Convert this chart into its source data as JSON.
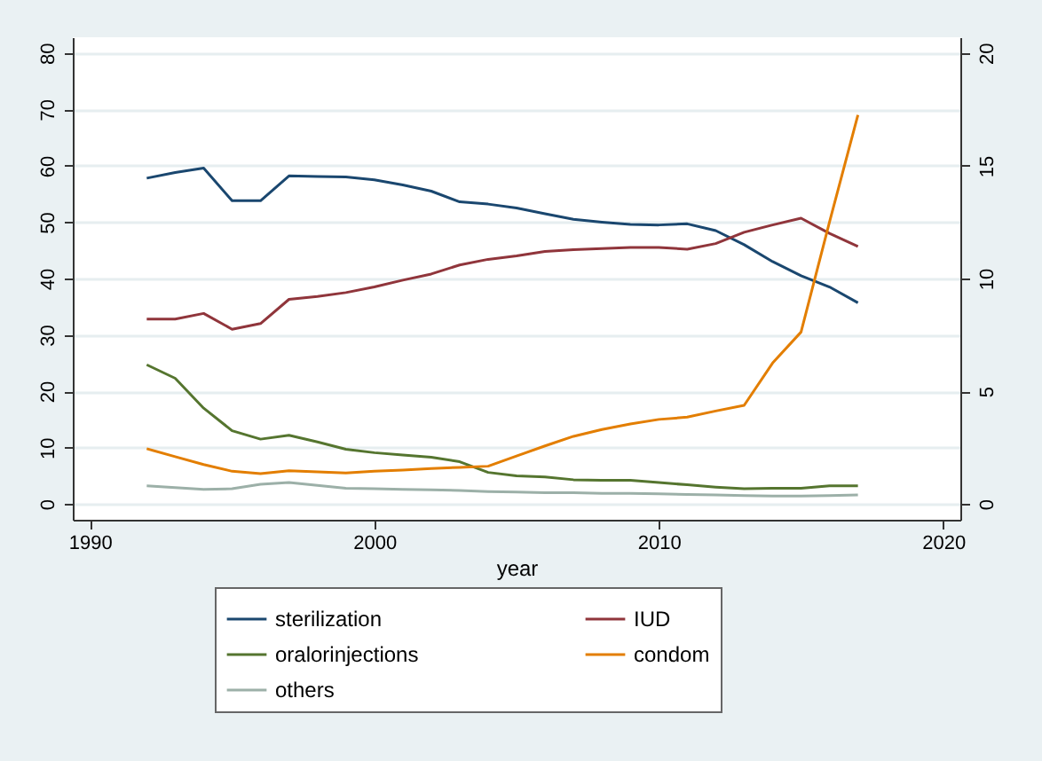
{
  "chart_data": {
    "type": "line",
    "xlabel": "year",
    "x": [
      1992,
      1993,
      1994,
      1995,
      1996,
      1997,
      1998,
      1999,
      2000,
      2001,
      2002,
      2003,
      2004,
      2005,
      2006,
      2007,
      2008,
      2009,
      2010,
      2011,
      2012,
      2013,
      2014,
      2015,
      2016,
      2017
    ],
    "series": [
      {
        "name": "sterilization",
        "color": "#1a476f",
        "values": [
          57.8,
          58.8,
          59.6,
          53.8,
          53.8,
          58.2,
          58.1,
          58,
          57.5,
          56.6,
          55.5,
          53.6,
          53.2,
          52.5,
          51.5,
          50.5,
          50,
          49.6,
          49.5,
          49.7,
          48.5,
          46,
          43,
          40.5,
          38.5,
          35.7
        ]
      },
      {
        "name": "IUD",
        "color": "#90353b",
        "values": [
          32.8,
          32.8,
          33.8,
          31,
          32,
          36.3,
          36.8,
          37.5,
          38.5,
          39.7,
          40.8,
          42.4,
          43.4,
          44,
          44.8,
          45.1,
          45.3,
          45.5,
          45.5,
          45.2,
          46.2,
          48.2,
          49.5,
          50.7,
          48,
          45.7
        ]
      },
      {
        "name": "oralorinjections",
        "color": "#55752f",
        "values": [
          24.7,
          22.3,
          17,
          13,
          11.5,
          12.2,
          11,
          9.7,
          9.1,
          8.7,
          8.3,
          7.5,
          5.6,
          5,
          4.8,
          4.3,
          4.2,
          4.2,
          3.8,
          3.4,
          3,
          2.7,
          2.8,
          2.8,
          3.2,
          3.2
        ]
      },
      {
        "name": "condom",
        "color": "#e37e00",
        "values": [
          9.8,
          8.4,
          7,
          5.8,
          5.4,
          5.9,
          5.7,
          5.5,
          5.8,
          6,
          6.3,
          6.5,
          6.7,
          8.5,
          10.3,
          12,
          13.2,
          14.2,
          15,
          15.4,
          16.5,
          17.5,
          25,
          30.5,
          50,
          69
        ]
      },
      {
        "name": "others",
        "color": "#9cb0a8",
        "values": [
          3.2,
          2.9,
          2.6,
          2.7,
          3.5,
          3.8,
          3.3,
          2.8,
          2.7,
          2.6,
          2.5,
          2.4,
          2.2,
          2.1,
          2,
          2,
          1.9,
          1.9,
          1.8,
          1.7,
          1.6,
          1.5,
          1.4,
          1.4,
          1.5,
          1.6
        ]
      }
    ],
    "xlim": [
      1989.4,
      2020.6
    ],
    "xticks": [
      1990,
      2000,
      2010,
      2020
    ],
    "ylim": [
      -2.8,
      82.8
    ],
    "yticks": [
      0,
      10,
      20,
      30,
      40,
      50,
      60,
      70,
      80
    ],
    "y2lim": [
      -0.7,
      20.7
    ],
    "y2ticks": [
      0,
      5,
      10,
      15,
      20
    ],
    "grid": "y",
    "legend": "bottom"
  }
}
